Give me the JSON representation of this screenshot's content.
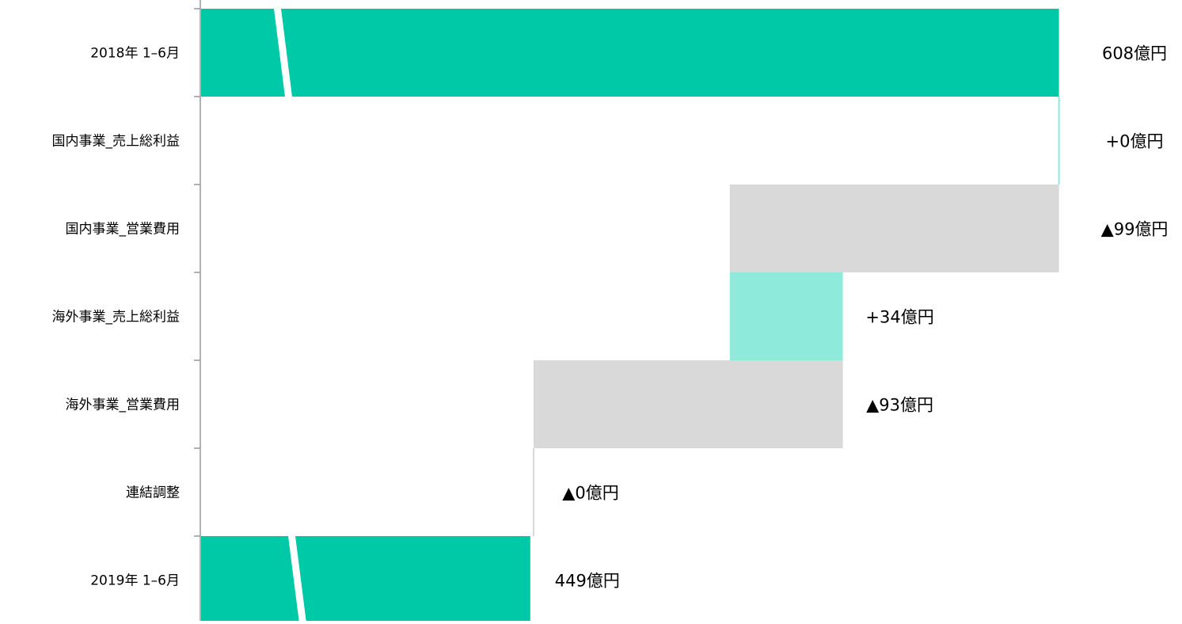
{
  "chart_data": {
    "type": "waterfall",
    "title": "",
    "xlabel": "",
    "ylabel": "",
    "unit": "億円",
    "categories": [
      "2018年 1–6月",
      "国内事業_売上総利益",
      "国内事業_営業費用",
      "海外事業_売上総利益",
      "海外事業_営業費用",
      "連結調整",
      "2019年 1–6月"
    ],
    "values": [
      608,
      0,
      -99,
      34,
      -93,
      0,
      449
    ],
    "kinds": [
      "total",
      "increase",
      "decrease",
      "increase",
      "decrease",
      "decrease",
      "total"
    ],
    "value_labels": [
      "608億円",
      "+0億円",
      "▲99億円",
      "+34億円",
      "▲93億円",
      "▲0億円",
      "449億円"
    ],
    "axis_break": true,
    "x_visible_range": [
      350,
      610
    ],
    "grid": false,
    "legend": "none",
    "colors": {
      "total": "#00c9a7",
      "increase": "#8eeadb",
      "decrease": "#d9d9d9",
      "axis": "#999999",
      "text": "#000000"
    }
  }
}
